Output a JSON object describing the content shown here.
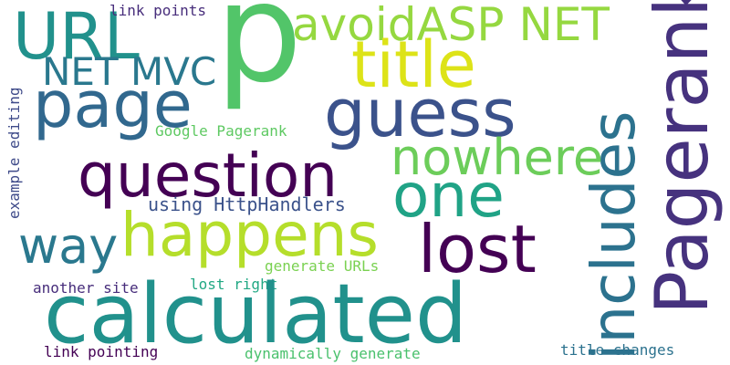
{
  "words": {
    "p": {
      "text": "p",
      "color": "#52c569"
    },
    "url": {
      "text": "URL",
      "color": "#21918c"
    },
    "avoid_asp_net": {
      "text": "avoidASP NET",
      "color": "#95d840"
    },
    "link_points": {
      "text": "link points",
      "color": "#472d7b"
    },
    "title": {
      "text": "title",
      "color": "#dde318"
    },
    "net_mvc": {
      "text": "NET MVC",
      "color": "#2a788e"
    },
    "page": {
      "text": "page",
      "color": "#31688e"
    },
    "guess": {
      "text": "guess",
      "color": "#3b528b"
    },
    "pagerank": {
      "text": "Pagerank",
      "color": "#46327e"
    },
    "includes": {
      "text": "includes",
      "color": "#2c728e"
    },
    "example_editing": {
      "text": "example editing",
      "color": "#3e4a89"
    },
    "google_pagerank": {
      "text": "Google Pagerank",
      "color": "#5ec962"
    },
    "nowhere": {
      "text": "nowhere",
      "color": "#6ccd5a"
    },
    "question": {
      "text": "question",
      "color": "#440154"
    },
    "one": {
      "text": "one",
      "color": "#20a386"
    },
    "using_httphandlers": {
      "text": "using HttpHandlers",
      "color": "#3b528b"
    },
    "happens": {
      "text": "happens",
      "color": "#b5de2b"
    },
    "way": {
      "text": "way",
      "color": "#2a788e"
    },
    "lost": {
      "text": "lost",
      "color": "#440154"
    },
    "generate_urls": {
      "text": "generate URLs",
      "color": "#7ad151"
    },
    "another_site": {
      "text": "another site",
      "color": "#472d7b"
    },
    "lost_right": {
      "text": "lost right",
      "color": "#22a884"
    },
    "calculated": {
      "text": "calculated",
      "color": "#21918c"
    },
    "link_pointing": {
      "text": "link pointing",
      "color": "#440154"
    },
    "dynamically_generate": {
      "text": "dynamically generate",
      "color": "#4ac16d"
    },
    "title_changes": {
      "text": "title changes",
      "color": "#2c728e"
    }
  }
}
